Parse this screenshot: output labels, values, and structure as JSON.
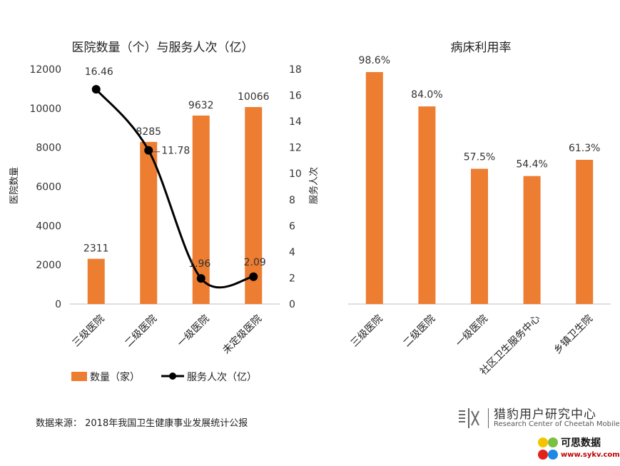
{
  "chart_data": [
    {
      "type": "bar+line",
      "title": "医院数量（个）与服务人次（亿）",
      "categories": [
        "三级医院",
        "二级医院",
        "一级医院",
        "未定级医院"
      ],
      "ylabel": "医院数量",
      "y2label": "服务人次",
      "ylim": [
        0,
        12000
      ],
      "y_ticks": [
        "0",
        "2000",
        "4000",
        "6000",
        "8000",
        "10000",
        "12000"
      ],
      "y2lim": [
        0,
        18
      ],
      "y2_ticks": [
        "0",
        "2",
        "4",
        "6",
        "8",
        "10",
        "12",
        "14",
        "16",
        "18"
      ],
      "series": [
        {
          "name": "数量（家）",
          "kind": "bar",
          "axis": "left",
          "color": "#ED7D31",
          "values": [
            2311,
            8285,
            9632,
            10066
          ],
          "labels": [
            "2311",
            "8285",
            "9632",
            "10066"
          ]
        },
        {
          "name": "服务人次（亿）",
          "kind": "line",
          "axis": "right",
          "color": "#000000",
          "values": [
            16.46,
            11.78,
            1.96,
            2.09
          ],
          "labels": [
            "16.46",
            "11.78",
            "1.96",
            "2.09"
          ]
        }
      ],
      "legend_position": "bottom"
    },
    {
      "type": "bar",
      "title": "病床利用率",
      "categories": [
        "三级医院",
        "二级医院",
        "一级医院",
        "社区卫生服务中心",
        "乡镇卫生院"
      ],
      "values": [
        98.6,
        84.0,
        57.5,
        54.4,
        61.3
      ],
      "labels": [
        "98.6%",
        "84.0%",
        "57.5%",
        "54.4%",
        "61.3%"
      ],
      "color": "#ED7D31"
    }
  ],
  "footer": {
    "source": "数据来源：  2018年我国卫生健康事业发展统计公报"
  },
  "brand": {
    "name_cn": "猎豹用户研究中心",
    "name_en": "Research Center of Cheetah Mobile"
  },
  "corner_logo": {
    "name_cn": "可思数据",
    "url": "www.sykv.com"
  }
}
